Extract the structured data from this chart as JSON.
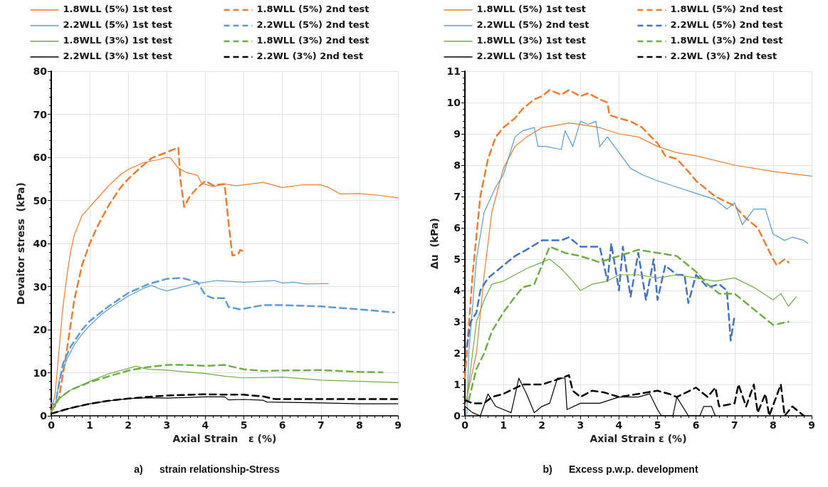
{
  "chart_data": [
    {
      "type": "line",
      "xlabel": "Axial Strain   ε (%)",
      "ylabel": "Devaitor stress  (kPa)",
      "xlim": [
        0,
        9
      ],
      "xticks": [
        0,
        1,
        2,
        3,
        4,
        5,
        6,
        7,
        8,
        9
      ],
      "ylim": [
        0,
        80
      ],
      "yticks": [
        0,
        10,
        20,
        30,
        40,
        50,
        60,
        70,
        80
      ],
      "grid": true,
      "legend": "top",
      "marker": "none",
      "annotations": [
        "a)      strain relationship-Stress"
      ],
      "series": [
        {
          "name": "1.8WLL (5%) 1st test",
          "color": "#ed7d31",
          "line_style": "solid",
          "x": [
            0,
            0.1,
            0.2,
            0.3,
            0.4,
            0.5,
            0.6,
            0.8,
            1,
            1.2,
            1.5,
            1.8,
            2,
            2.4,
            2.8,
            3,
            3.1,
            3.3,
            3.5,
            3.8,
            3.9,
            4.2,
            4.5,
            4.8,
            5,
            5.5,
            6,
            6.5,
            7,
            7.2,
            7.5,
            8,
            8.5,
            9
          ],
          "values": [
            1,
            5,
            15,
            25,
            32,
            38,
            42,
            46.5,
            48.5,
            50.5,
            53.5,
            56,
            57.2,
            58.8,
            59.5,
            60,
            59.8,
            57.5,
            56.5,
            55.8,
            54,
            53.2,
            53.8,
            53.4,
            53.6,
            54.2,
            53,
            53.6,
            53.6,
            53,
            51.5,
            51.6,
            51.2,
            50.6
          ]
        },
        {
          "name": "1.8WLL (5%) 2nd test",
          "color": "#ed7d31",
          "line_style": "dashed",
          "x": [
            0,
            0.2,
            0.4,
            0.6,
            0.8,
            1,
            1.2,
            1.5,
            1.8,
            2,
            2.3,
            2.6,
            3,
            3.3,
            3.35,
            3.45,
            3.6,
            3.8,
            4,
            4.2,
            4.5,
            4.6,
            4.7,
            4.85,
            4.9,
            5.05
          ],
          "values": [
            1,
            4,
            15,
            27,
            35,
            40,
            44,
            49,
            53,
            55,
            57.5,
            59.8,
            61.2,
            62.3,
            55,
            48.5,
            51,
            53,
            54.5,
            53.5,
            53.8,
            45,
            37.2,
            37.5,
            38.5,
            38
          ]
        },
        {
          "name": "2.2WLL (5%) 1st test",
          "color": "#5b9bd5",
          "line_style": "solid",
          "x": [
            0,
            0.1,
            0.2,
            0.4,
            0.6,
            0.8,
            1,
            1.3,
            1.6,
            2,
            2.4,
            2.6,
            2.8,
            3,
            3.3,
            3.7,
            4,
            4.3,
            5,
            5.8,
            6,
            6.3,
            6.6,
            7.2
          ],
          "values": [
            3,
            2,
            8,
            13,
            16.5,
            19,
            21,
            23.5,
            25.5,
            27.8,
            29.6,
            30.3,
            29.5,
            29,
            29.7,
            30.6,
            31,
            31.4,
            31,
            31.4,
            30.8,
            31,
            30.6,
            30.7
          ]
        },
        {
          "name": "2.2WLL (5%) 2nd test",
          "color": "#5b9bd5",
          "line_style": "dashed",
          "x": [
            0,
            0.1,
            0.3,
            0.5,
            0.8,
            1,
            1.5,
            2,
            2.5,
            3,
            3.4,
            3.8,
            4,
            4.2,
            4.5,
            4.6,
            4.9,
            5.5,
            6,
            7,
            8,
            8.9
          ],
          "values": [
            3,
            2.5,
            12,
            16,
            20,
            22,
            25.5,
            28.5,
            30.5,
            31.8,
            32,
            31,
            28,
            27.3,
            27.3,
            25.3,
            24.7,
            25.7,
            25.7,
            25.4,
            24.7,
            24
          ]
        },
        {
          "name": "1.8WLL (3%) 1st test",
          "color": "#70ad47",
          "line_style": "solid",
          "x": [
            0,
            0.2,
            0.5,
            1,
            1.5,
            2,
            2.2,
            2.5,
            3,
            4,
            4.5,
            5,
            6,
            7,
            8,
            9
          ],
          "values": [
            1,
            4,
            6,
            8,
            9.8,
            11,
            11.5,
            10.8,
            10.6,
            9.8,
            9.2,
            8.8,
            9,
            8.3,
            8,
            7.7
          ]
        },
        {
          "name": "1.8WLL (3%) 2nd test",
          "color": "#70ad47",
          "line_style": "dashed",
          "x": [
            0,
            0.2,
            0.5,
            1,
            1.5,
            2,
            2.5,
            3,
            3.5,
            4,
            4.5,
            5,
            5.5,
            6,
            7,
            8,
            8.6
          ],
          "values": [
            1,
            4,
            6,
            7.8,
            9.2,
            10.5,
            11.3,
            11.8,
            11.8,
            11.6,
            11.8,
            10.8,
            10.4,
            10.5,
            10.6,
            10.2,
            10.1
          ]
        },
        {
          "name": "2.2WLL (3%) 1st test",
          "color": "#000000",
          "line_style": "solid",
          "x": [
            0,
            0.5,
            1,
            1.5,
            2,
            2.5,
            3,
            4,
            4.5,
            4.6,
            5,
            5.5,
            5.6,
            7,
            8,
            9
          ],
          "values": [
            0.5,
            1.8,
            2.8,
            3.5,
            4,
            4.2,
            4.1,
            4.4,
            4.4,
            3.7,
            3.8,
            3.6,
            3.2,
            3,
            2.8,
            2.8
          ]
        },
        {
          "name": "2.2WL (3%) 2nd test",
          "color": "#000000",
          "line_style": "dashed",
          "x": [
            0,
            0.5,
            1,
            1.5,
            2,
            2.5,
            3,
            4,
            4.5,
            5,
            5.5,
            5.8,
            7,
            9
          ],
          "values": [
            0.5,
            1.8,
            2.8,
            3.5,
            4,
            4.4,
            4.7,
            5,
            4.9,
            4.9,
            4.5,
            3.9,
            3.9,
            3.9
          ]
        }
      ]
    },
    {
      "type": "line",
      "xlabel": "Axial Strain ε (%)",
      "ylabel": "Δu  (kPa)",
      "xlim": [
        0,
        9
      ],
      "xticks": [
        0,
        1,
        2,
        3,
        4,
        5,
        6,
        7,
        8,
        9
      ],
      "ylim": [
        0,
        11
      ],
      "yticks": [
        0,
        1,
        2,
        3,
        4,
        5,
        6,
        7,
        8,
        9,
        10,
        11
      ],
      "grid": true,
      "legend": "top",
      "marker": "none",
      "annotations": [
        "b)      Excess p.w.p. development"
      ],
      "series": [
        {
          "name": "1.8WLL (5%) 1st test",
          "color": "#ed7d31",
          "line_style": "solid",
          "x": [
            0,
            0.3,
            0.5,
            0.7,
            1,
            1.3,
            1.6,
            2,
            2.5,
            2.7,
            3,
            3.5,
            4,
            4.5,
            5,
            5.5,
            6,
            7,
            8,
            9
          ],
          "values": [
            0.3,
            2,
            4.5,
            6.5,
            7.9,
            8.6,
            8.9,
            9.2,
            9.3,
            9.35,
            9.3,
            9.2,
            9,
            8.9,
            8.6,
            8.4,
            8.3,
            8,
            7.8,
            7.65
          ]
        },
        {
          "name": "1.8WLL (5%) 2nd test",
          "color": "#ed7d31",
          "line_style": "dashed",
          "x": [
            0,
            0.2,
            0.4,
            0.6,
            0.8,
            1,
            1.3,
            1.5,
            1.8,
            2,
            2.2,
            2.5,
            2.7,
            3,
            3.2,
            3.5,
            3.7,
            3.75,
            4,
            4.3,
            4.6,
            5,
            5.2,
            5.5,
            5.8,
            6,
            6.5,
            7,
            7.3,
            7.6,
            7.8,
            8,
            8.1,
            8.3,
            8.4
          ],
          "values": [
            1.2,
            4.5,
            7,
            8.2,
            8.9,
            9.2,
            9.5,
            9.8,
            10.1,
            10.2,
            10.4,
            10.25,
            10.4,
            10.2,
            10.3,
            10.1,
            10,
            9.6,
            9.5,
            9.4,
            9.2,
            8.7,
            8.3,
            8.2,
            7.8,
            7.5,
            7,
            6.7,
            6.3,
            6,
            5.5,
            5,
            4.8,
            5,
            4.9
          ]
        },
        {
          "name": "2.2WLL (5%) 2nd test",
          "color": "#5b9bd5",
          "line_style": "solid",
          "x": [
            0.05,
            0.1,
            0.2,
            0.3,
            0.5,
            0.8,
            1,
            1.3,
            1.5,
            1.8,
            1.9,
            2.1,
            2.5,
            2.6,
            2.8,
            3,
            3.2,
            3.4,
            3.5,
            3.7,
            4,
            4.3,
            4.6,
            5,
            5.5,
            6,
            6.5,
            6.8,
            7,
            7.2,
            7.5,
            7.8,
            8,
            8.3,
            8.5,
            8.8,
            8.9
          ],
          "values": [
            0,
            2,
            3.5,
            5,
            6.5,
            7.3,
            7.7,
            8.9,
            9.1,
            9.2,
            8.6,
            8.6,
            8.5,
            9.1,
            8.6,
            9.4,
            9.3,
            9.4,
            8.6,
            8.9,
            8.4,
            7.9,
            7.7,
            7.5,
            7.3,
            7.1,
            6.9,
            6.6,
            6.8,
            6.1,
            6.6,
            6.6,
            5.8,
            5.6,
            5.7,
            5.6,
            5.5
          ]
        },
        {
          "name": "2.2WLL (5%) 2nd test",
          "color": "#4472c4",
          "line_style": "dashed",
          "x": [
            0.05,
            0.15,
            0.3,
            0.4,
            0.6,
            0.8,
            1,
            1.3,
            1.6,
            2,
            2.5,
            2.7,
            3,
            3.5,
            3.7,
            3.8,
            4,
            4.1,
            4.3,
            4.5,
            4.7,
            4.9,
            5,
            5.2,
            5.5,
            5.7,
            5.8,
            6,
            6.3,
            6.6,
            6.8,
            6.9,
            7
          ],
          "values": [
            2.2,
            3,
            3.3,
            4,
            4.4,
            4.6,
            4.8,
            5.1,
            5.3,
            5.6,
            5.6,
            5.7,
            5.4,
            5.4,
            4.3,
            5.5,
            4,
            5.4,
            3.8,
            5.2,
            3.7,
            5,
            3.7,
            4.8,
            4.5,
            4.5,
            3.6,
            4.5,
            4.1,
            4.2,
            4,
            2.4,
            3.2
          ]
        },
        {
          "name": "1.8WLL (3%) 1st test",
          "color": "#70ad47",
          "line_style": "solid",
          "x": [
            0.05,
            0.2,
            0.3,
            0.5,
            0.7,
            1,
            1.3,
            1.6,
            2,
            2.2,
            2.5,
            2.8,
            3,
            3.3,
            3.7,
            4,
            4.5,
            5,
            5.5,
            6,
            6.5,
            7,
            7.5,
            8,
            8.2,
            8.4,
            8.6
          ],
          "values": [
            0.5,
            2,
            3,
            3.7,
            4.2,
            4.3,
            4.5,
            4.7,
            4.9,
            5,
            4.7,
            4.3,
            4,
            4.2,
            4.3,
            4.5,
            4.5,
            4.4,
            4.5,
            4.4,
            4.3,
            4.4,
            4.1,
            3.7,
            3.9,
            3.5,
            3.8
          ]
        },
        {
          "name": "1.8WLL (3%) 2nd test",
          "color": "#70ad47",
          "line_style": "dashed",
          "x": [
            0.1,
            0.3,
            0.5,
            0.7,
            1,
            1.3,
            1.5,
            1.8,
            2.2,
            2.6,
            3,
            3.5,
            4,
            4.5,
            5,
            5.5,
            6,
            6.3,
            6.6,
            7,
            7.5,
            8,
            8.4
          ],
          "values": [
            0.5,
            1.5,
            2,
            2.7,
            3.3,
            3.8,
            4.1,
            4.2,
            5.4,
            5.2,
            5.1,
            4.9,
            5.1,
            5.3,
            5.2,
            5.1,
            4.6,
            4.2,
            3.9,
            3.9,
            3.4,
            2.9,
            3
          ]
        },
        {
          "name": "2.2WLL (3%) 1st test",
          "color": "#000000",
          "line_style": "solid",
          "x": [
            0,
            0.2,
            0.4,
            0.6,
            0.8,
            1,
            1.2,
            1.4,
            1.6,
            1.8,
            2,
            2.2,
            2.4,
            2.6,
            2.65,
            3,
            3.5,
            4,
            4.5,
            4.8,
            5,
            5.1,
            5.4,
            5.5,
            5.8,
            6.1,
            6.2,
            6.4,
            6.5
          ],
          "values": [
            0.3,
            0.1,
            0,
            0.7,
            0.3,
            0.2,
            0.1,
            1.2,
            0.7,
            0.1,
            0.3,
            0.4,
            1.2,
            1.2,
            0.2,
            0.4,
            0.4,
            0.6,
            0.6,
            0.7,
            0.2,
            0,
            0,
            0.6,
            0,
            0,
            0.3,
            0.3,
            0
          ]
        },
        {
          "name": "2.2WL (3%) 2nd test",
          "color": "#000000",
          "line_style": "dashed",
          "x": [
            0,
            0.2,
            0.5,
            0.7,
            1,
            1.5,
            2,
            2.5,
            2.7,
            2.8,
            3,
            3.3,
            3.6,
            4,
            4.5,
            5,
            5.3,
            5.5,
            6,
            6.3,
            6.5,
            6.6,
            7,
            7.1,
            7.3,
            7.5,
            7.6,
            7.8,
            7.9,
            8.2,
            8.3,
            8.5,
            8.7,
            8.8
          ],
          "values": [
            0.5,
            0.4,
            0.4,
            0.6,
            0.7,
            1,
            1,
            1.2,
            1.3,
            0.8,
            0.6,
            0.8,
            0.75,
            0.6,
            0.7,
            0.8,
            0.7,
            0.6,
            0.9,
            0.6,
            0.9,
            0.3,
            0.4,
            1,
            0.3,
            1,
            0.1,
            0.7,
            0,
            1,
            0,
            0.3,
            0.1,
            0
          ]
        }
      ]
    }
  ]
}
